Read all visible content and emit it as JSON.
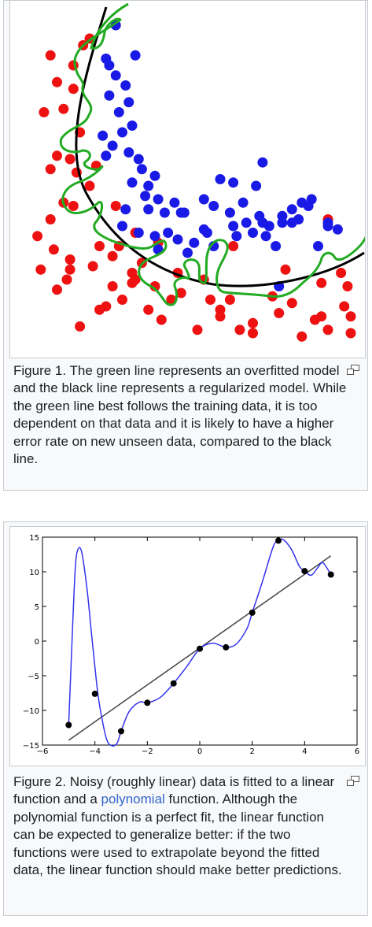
{
  "figure1": {
    "caption": "Figure 1.  The green line represents an overfitted model and the black line represents a regularized model. While the green line best follows the training data, it is too dependent on that data and it is likely to have a higher error rate on new unseen data, compared to the black line.",
    "colors": {
      "red": "#ee1111",
      "blue": "#1a1ae6",
      "overfit": "#22aa22",
      "regularized": "#000000"
    },
    "enlarge_icon": "magnify-clip-icon"
  },
  "figure2": {
    "caption_before_link": "Figure 2.  Noisy (roughly linear) data is fitted to a linear function and a ",
    "caption_link": "polynomial",
    "caption_after_link": " function. Although the polynomial function is a perfect fit, the linear function can be expected to generalize better: if the two functions were used to extrapolate beyond the fitted data, the linear function should make better predictions.",
    "enlarge_icon": "magnify-clip-icon"
  },
  "chart_data": [
    {
      "type": "scatter",
      "title": "",
      "classes": [
        {
          "color": "red",
          "points": [
            [
              20,
              92
            ],
            [
              27,
              27
            ],
            [
              18,
              90
            ],
            [
              8,
              87
            ],
            [
              10,
              79
            ],
            [
              15,
              84
            ],
            [
              6,
              70
            ],
            [
              12,
              71
            ],
            [
              15,
              77
            ],
            [
              10,
              57
            ],
            [
              17,
              64
            ],
            [
              8,
              53
            ],
            [
              14,
              56
            ],
            [
              16,
              52
            ],
            [
              20,
              48
            ],
            [
              22,
              54
            ],
            [
              28,
              42
            ],
            [
              12,
              43
            ],
            [
              15,
              42
            ],
            [
              8,
              38
            ],
            [
              4,
              33
            ],
            [
              9,
              29
            ],
            [
              14,
              26
            ],
            [
              21,
              24
            ],
            [
              5,
              23
            ],
            [
              10,
              17
            ],
            [
              13,
              20
            ],
            [
              23,
              30
            ],
            [
              27,
              18
            ],
            [
              33,
              19
            ],
            [
              38,
              11
            ],
            [
              42,
              8
            ],
            [
              47,
              22
            ],
            [
              45,
              14
            ],
            [
              53,
              5
            ],
            [
              57,
              14
            ],
            [
              60,
              11
            ],
            [
              66,
              5
            ],
            [
              70,
              4
            ],
            [
              78,
              10
            ],
            [
              85,
              3
            ],
            [
              89,
              8
            ],
            [
              93,
              5
            ],
            [
              98,
              12
            ],
            [
              91,
              19
            ],
            [
              97,
              22
            ],
            [
              80,
              23
            ],
            [
              64,
              30
            ],
            [
              48,
              16
            ],
            [
              63,
              14
            ],
            [
              60,
              9
            ],
            [
              40,
              18
            ],
            [
              30,
              14
            ],
            [
              25,
              12
            ],
            [
              36,
              25
            ],
            [
              41,
              31
            ],
            [
              34,
              34
            ],
            [
              33,
              22
            ],
            [
              23,
              11
            ],
            [
              17,
              6
            ],
            [
              76,
              15
            ],
            [
              55,
              20
            ],
            [
              82,
              13
            ],
            [
              91,
              9
            ],
            [
              100,
              4
            ],
            [
              93,
              38
            ],
            [
              100,
              9
            ],
            [
              99,
              18
            ],
            [
              14,
              23
            ],
            [
              34,
              20
            ],
            [
              29,
              30
            ],
            [
              70,
              7
            ]
          ]
        },
        {
          "color": "blue",
          "points": [
            [
              28,
              96
            ],
            [
              34,
              87
            ],
            [
              25,
              86
            ],
            [
              28,
              81
            ],
            [
              26,
              84
            ],
            [
              31,
              78
            ],
            [
              32,
              73
            ],
            [
              26,
              75
            ],
            [
              29,
              70
            ],
            [
              33,
              66
            ],
            [
              30,
              64
            ],
            [
              24,
              63
            ],
            [
              27,
              60
            ],
            [
              25,
              57
            ],
            [
              32,
              58
            ],
            [
              35,
              56
            ],
            [
              36,
              53
            ],
            [
              40,
              51
            ],
            [
              33,
              49
            ],
            [
              38,
              48
            ],
            [
              37,
              45
            ],
            [
              41,
              44
            ],
            [
              46,
              43
            ],
            [
              38,
              41
            ],
            [
              43,
              40
            ],
            [
              31,
              41
            ],
            [
              35,
              34
            ],
            [
              40,
              33
            ],
            [
              30,
              36
            ],
            [
              48,
              40
            ],
            [
              55,
              44
            ],
            [
              58,
              42
            ],
            [
              63,
              40
            ],
            [
              67,
              43
            ],
            [
              71,
              48
            ],
            [
              73,
              55
            ],
            [
              60,
              50
            ],
            [
              64,
              49
            ],
            [
              72,
              39
            ],
            [
              79,
              39
            ],
            [
              85,
              43
            ],
            [
              88,
              44
            ],
            [
              93,
              37
            ],
            [
              96,
              35
            ],
            [
              93,
              36
            ],
            [
              87,
              42
            ],
            [
              84,
              38
            ],
            [
              82,
              37
            ],
            [
              79,
              37
            ],
            [
              75,
              36
            ],
            [
              74,
              33
            ],
            [
              77,
              30
            ],
            [
              68,
              37
            ],
            [
              70,
              34
            ],
            [
              64,
              36
            ],
            [
              56,
              34
            ],
            [
              52,
              31
            ],
            [
              58,
              30
            ],
            [
              55,
              35
            ],
            [
              47,
              32
            ],
            [
              44,
              34
            ],
            [
              50,
              28
            ],
            [
              49,
              40
            ],
            [
              41,
              29
            ],
            [
              78,
              18
            ],
            [
              73,
              37
            ],
            [
              65,
              33
            ],
            [
              90,
              30
            ],
            [
              82,
              41
            ]
          ]
        }
      ]
    },
    {
      "type": "line",
      "title": "",
      "xlabel": "",
      "ylabel": "",
      "xlim": [
        -6,
        6
      ],
      "ylim": [
        -15,
        15
      ],
      "xticks": [
        "−6",
        "−4",
        "−2",
        "0",
        "2",
        "4",
        "6"
      ],
      "yticks": [
        "15",
        "10",
        "5",
        "0",
        "−5",
        "−10",
        "−15"
      ],
      "series": [
        {
          "kind": "points",
          "x": [
            -5,
            -4,
            -3,
            -2,
            -1,
            0,
            1,
            2,
            3,
            4,
            5
          ],
          "y": [
            -12.1,
            -7.6,
            -13.0,
            -8.9,
            -6.1,
            -1.1,
            -0.9,
            4.1,
            14.5,
            10.1,
            9.6
          ]
        },
        {
          "kind": "linear fit",
          "x": [
            -5,
            5
          ],
          "y": [
            -14.3,
            12.3
          ]
        },
        {
          "kind": "polynomial fit",
          "x": [
            -5,
            -4.85,
            -4.75,
            -4.65,
            -4.5,
            -4.3,
            -4.1,
            -3.9,
            -3.75,
            -3.55,
            -3.35,
            -3.15,
            -3.0,
            -2.7,
            -2.3,
            -2.0,
            -1.5,
            -1.0,
            -0.5,
            0.0,
            0.5,
            1.0,
            1.4,
            1.8,
            2.0,
            2.4,
            2.8,
            3.0,
            3.2,
            3.5,
            3.8,
            4.0,
            4.25,
            4.5,
            4.7,
            5.0
          ],
          "y": [
            -12.1,
            2.0,
            10.5,
            13.2,
            12.8,
            7.5,
            0.0,
            -7.2,
            -10.8,
            -14.2,
            -15.1,
            -14.7,
            -13.0,
            -10.2,
            -8.8,
            -8.9,
            -8.1,
            -6.1,
            -3.7,
            -1.1,
            -0.3,
            -0.9,
            -0.4,
            1.8,
            4.1,
            8.7,
            13.6,
            14.5,
            14.6,
            13.2,
            10.8,
            10.1,
            9.5,
            10.6,
            11.3,
            9.6
          ]
        }
      ]
    }
  ]
}
